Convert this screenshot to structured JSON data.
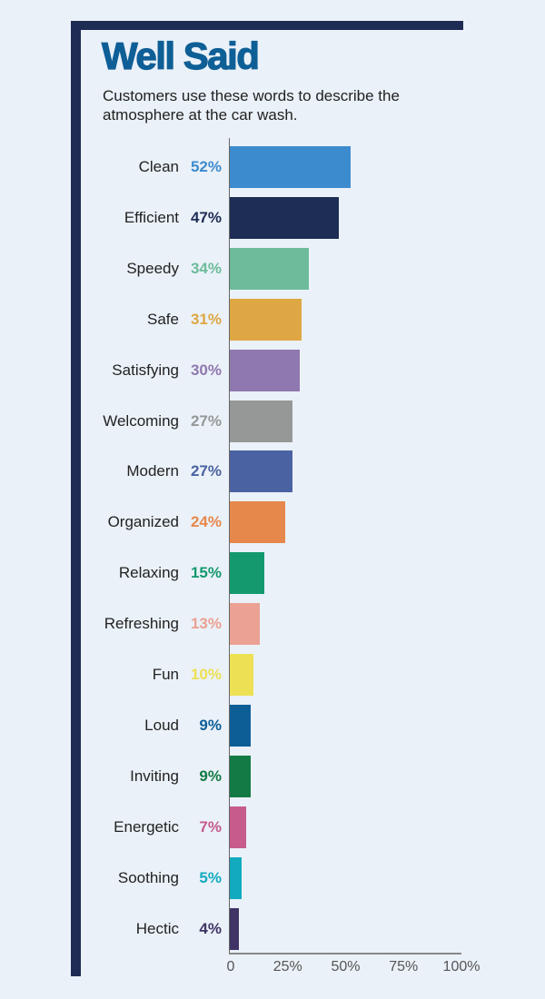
{
  "title": "Well Said",
  "subtitle": "Customers use these words to describe the atmosphere at the car wash.",
  "colors": {
    "frame": "#1e2b53",
    "title": "#0f5f97",
    "background": "#eaf1f8"
  },
  "chart_data": {
    "type": "bar",
    "orientation": "horizontal",
    "title": "Well Said",
    "subtitle": "Customers use these words to describe the atmosphere at the car wash.",
    "xlabel": "",
    "ylabel": "",
    "xlim": [
      0,
      100
    ],
    "grid": false,
    "legend": null,
    "ticks": [
      "0",
      "25%",
      "50%",
      "75%",
      "100%"
    ],
    "categories": [
      "Clean",
      "Efficient",
      "Speedy",
      "Safe",
      "Satisfying",
      "Welcoming",
      "Modern",
      "Organized",
      "Relaxing",
      "Refreshing",
      "Fun",
      "Loud",
      "Inviting",
      "Energetic",
      "Soothing",
      "Hectic"
    ],
    "values": [
      52,
      47,
      34,
      31,
      30,
      27,
      27,
      24,
      15,
      13,
      10,
      9,
      9,
      7,
      5,
      4
    ],
    "value_labels": [
      "52%",
      "47%",
      "34%",
      "31%",
      "30%",
      "27%",
      "27%",
      "24%",
      "15%",
      "13%",
      "10%",
      "9%",
      "9%",
      "7%",
      "5%",
      "4%"
    ],
    "bar_colors": [
      "#3d8bcf",
      "#1e2d55",
      "#6dbb9b",
      "#dea744",
      "#8f78b0",
      "#969898",
      "#4a62a2",
      "#e6874c",
      "#14996f",
      "#eba193",
      "#ede055",
      "#0d5e97",
      "#137a46",
      "#c75b8b",
      "#12aabf",
      "#3f3465"
    ]
  }
}
